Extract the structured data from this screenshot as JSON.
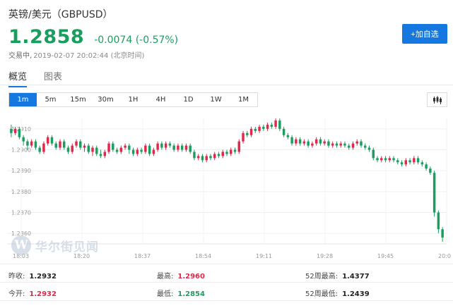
{
  "header": {
    "title": "英镑/美元（GBPUSD）",
    "price": "1.2858",
    "change": "-0.0074 (-0.57%)",
    "status": "交易中,",
    "timestamp": "2019-02-07 20:02:44 (北京时间)",
    "add_button": "+加自选"
  },
  "tabs": [
    {
      "label": "概览",
      "active": true
    },
    {
      "label": "图表",
      "active": false
    }
  ],
  "periods": [
    "1m",
    "5m",
    "15m",
    "30m",
    "1H",
    "4H",
    "1D",
    "1W",
    "1M"
  ],
  "active_period": "1m",
  "colors": {
    "up": "#e0284a",
    "down": "#1a9e5f",
    "accent": "#1478e0"
  },
  "chart_type_icon": "candlestick-icon",
  "watermark": {
    "logo_letter": "W",
    "text": "华尔街见闻"
  },
  "chart_data": {
    "type": "candlestick",
    "y_ticks": [
      "1.2910",
      "1.2900",
      "1.2890",
      "1.2880",
      "1.2870",
      "1.2860"
    ],
    "ylim": [
      1.2855,
      1.2915
    ],
    "x_ticks": [
      "18:03",
      "18:20",
      "18:37",
      "18:54",
      "19:11",
      "19:28",
      "19:45",
      "20:0"
    ],
    "x_start": "18:03",
    "x_end": "20:02",
    "grid": true,
    "candles": [
      [
        1.291,
        1.2908,
        1.2912,
        1.2906
      ],
      [
        1.2908,
        1.291,
        1.2911,
        1.2907
      ],
      [
        1.291,
        1.2906,
        1.2911,
        1.2905
      ],
      [
        1.2906,
        1.2904,
        1.2907,
        1.2902
      ],
      [
        1.2904,
        1.2902,
        1.2905,
        1.29
      ],
      [
        1.2902,
        1.2904,
        1.2905,
        1.2901
      ],
      [
        1.2904,
        1.2901,
        1.2905,
        1.29
      ],
      [
        1.2901,
        1.2899,
        1.2902,
        1.2898
      ],
      [
        1.2899,
        1.2903,
        1.2904,
        1.2898
      ],
      [
        1.2903,
        1.2906,
        1.2907,
        1.2902
      ],
      [
        1.2906,
        1.2903,
        1.2907,
        1.2902
      ],
      [
        1.2903,
        1.2901,
        1.2904,
        1.29
      ],
      [
        1.2901,
        1.2904,
        1.2905,
        1.29
      ],
      [
        1.2904,
        1.2901,
        1.2905,
        1.29
      ],
      [
        1.2901,
        1.2899,
        1.2902,
        1.2898
      ],
      [
        1.2899,
        1.2902,
        1.2903,
        1.2898
      ],
      [
        1.2902,
        1.2904,
        1.2905,
        1.2901
      ],
      [
        1.2904,
        1.2901,
        1.2905,
        1.29
      ],
      [
        1.2901,
        1.2902,
        1.2903,
        1.2899
      ],
      [
        1.2902,
        1.2899,
        1.2903,
        1.2898
      ],
      [
        1.2899,
        1.2901,
        1.2902,
        1.2897
      ],
      [
        1.2901,
        1.2898,
        1.2902,
        1.2897
      ],
      [
        1.2898,
        1.2897,
        1.29,
        1.2896
      ],
      [
        1.2897,
        1.2899,
        1.29,
        1.2896
      ],
      [
        1.2899,
        1.2903,
        1.2904,
        1.2898
      ],
      [
        1.2903,
        1.29,
        1.2904,
        1.2899
      ],
      [
        1.29,
        1.2899,
        1.2901,
        1.2898
      ],
      [
        1.2899,
        1.2901,
        1.2902,
        1.2898
      ],
      [
        1.2901,
        1.2902,
        1.2903,
        1.29
      ],
      [
        1.2902,
        1.29,
        1.2903,
        1.2898
      ],
      [
        1.29,
        1.2898,
        1.2901,
        1.2897
      ],
      [
        1.2898,
        1.29,
        1.2901,
        1.2897
      ],
      [
        1.29,
        1.2899,
        1.2901,
        1.2898
      ],
      [
        1.2899,
        1.2902,
        1.2903,
        1.2898
      ],
      [
        1.2902,
        1.2898,
        1.2903,
        1.2897
      ],
      [
        1.2898,
        1.29,
        1.2901,
        1.2897
      ],
      [
        1.29,
        1.2903,
        1.2904,
        1.2899
      ],
      [
        1.2903,
        1.2901,
        1.2904,
        1.29
      ],
      [
        1.2901,
        1.2903,
        1.2904,
        1.29
      ],
      [
        1.2903,
        1.2902,
        1.2904,
        1.2901
      ],
      [
        1.2902,
        1.29,
        1.2903,
        1.2899
      ],
      [
        1.29,
        1.2902,
        1.2903,
        1.2899
      ],
      [
        1.2902,
        1.29,
        1.2903,
        1.2899
      ],
      [
        1.29,
        1.2902,
        1.2903,
        1.2899
      ],
      [
        1.2902,
        1.2899,
        1.2903,
        1.2898
      ],
      [
        1.2899,
        1.2896,
        1.29,
        1.2895
      ],
      [
        1.2896,
        1.2897,
        1.2898,
        1.2895
      ],
      [
        1.2897,
        1.2895,
        1.2898,
        1.2894
      ],
      [
        1.2895,
        1.2897,
        1.2898,
        1.2894
      ],
      [
        1.2897,
        1.2896,
        1.2898,
        1.2895
      ],
      [
        1.2896,
        1.2898,
        1.2899,
        1.2895
      ],
      [
        1.2898,
        1.2897,
        1.2899,
        1.2896
      ],
      [
        1.2897,
        1.2899,
        1.29,
        1.2896
      ],
      [
        1.2899,
        1.2898,
        1.29,
        1.2897
      ],
      [
        1.2898,
        1.29,
        1.2901,
        1.2897
      ],
      [
        1.29,
        1.2899,
        1.2901,
        1.2898
      ],
      [
        1.2899,
        1.2904,
        1.2905,
        1.2898
      ],
      [
        1.2904,
        1.2908,
        1.2909,
        1.2903
      ],
      [
        1.2908,
        1.2907,
        1.2909,
        1.2906
      ],
      [
        1.2907,
        1.291,
        1.2911,
        1.2906
      ],
      [
        1.291,
        1.2909,
        1.2911,
        1.2908
      ],
      [
        1.2909,
        1.2911,
        1.2912,
        1.2908
      ],
      [
        1.2911,
        1.291,
        1.2912,
        1.2909
      ],
      [
        1.291,
        1.2912,
        1.2913,
        1.2909
      ],
      [
        1.2912,
        1.2911,
        1.2913,
        1.291
      ],
      [
        1.2911,
        1.2914,
        1.2915,
        1.291
      ],
      [
        1.2914,
        1.291,
        1.2915,
        1.2909
      ],
      [
        1.291,
        1.2907,
        1.2911,
        1.2906
      ],
      [
        1.2907,
        1.2906,
        1.2908,
        1.2905
      ],
      [
        1.2906,
        1.2903,
        1.2907,
        1.2902
      ],
      [
        1.2903,
        1.2905,
        1.2906,
        1.2902
      ],
      [
        1.2905,
        1.2903,
        1.2906,
        1.2902
      ],
      [
        1.2903,
        1.2904,
        1.2905,
        1.2902
      ],
      [
        1.2904,
        1.2902,
        1.2905,
        1.2901
      ],
      [
        1.2902,
        1.2903,
        1.2904,
        1.2901
      ],
      [
        1.2903,
        1.2905,
        1.2906,
        1.2902
      ],
      [
        1.2905,
        1.2903,
        1.2906,
        1.2902
      ],
      [
        1.2903,
        1.2904,
        1.2905,
        1.2902
      ],
      [
        1.2904,
        1.2902,
        1.2905,
        1.2901
      ],
      [
        1.2902,
        1.2903,
        1.2904,
        1.2901
      ],
      [
        1.2903,
        1.2902,
        1.2904,
        1.2901
      ],
      [
        1.2902,
        1.2903,
        1.2904,
        1.2901
      ],
      [
        1.2903,
        1.2902,
        1.2904,
        1.2901
      ],
      [
        1.2902,
        1.2901,
        1.2903,
        1.29
      ],
      [
        1.2901,
        1.2903,
        1.2904,
        1.29
      ],
      [
        1.2903,
        1.2904,
        1.2905,
        1.2902
      ],
      [
        1.2904,
        1.2902,
        1.2905,
        1.2901
      ],
      [
        1.2902,
        1.2901,
        1.2903,
        1.29
      ],
      [
        1.2901,
        1.29,
        1.2902,
        1.2899
      ],
      [
        1.29,
        1.2896,
        1.2901,
        1.2895
      ],
      [
        1.2896,
        1.2895,
        1.2897,
        1.2894
      ],
      [
        1.2895,
        1.2896,
        1.2897,
        1.2894
      ],
      [
        1.2896,
        1.2895,
        1.2897,
        1.2894
      ],
      [
        1.2895,
        1.2896,
        1.2897,
        1.2894
      ],
      [
        1.2896,
        1.2895,
        1.2897,
        1.2894
      ],
      [
        1.2895,
        1.2894,
        1.2896,
        1.2893
      ],
      [
        1.2894,
        1.2893,
        1.2895,
        1.2892
      ],
      [
        1.2893,
        1.2895,
        1.2896,
        1.2892
      ],
      [
        1.2895,
        1.2894,
        1.2896,
        1.2893
      ],
      [
        1.2894,
        1.2896,
        1.2897,
        1.2893
      ],
      [
        1.2896,
        1.2894,
        1.2897,
        1.2893
      ],
      [
        1.2894,
        1.2893,
        1.2895,
        1.2892
      ],
      [
        1.2893,
        1.2891,
        1.2894,
        1.289
      ],
      [
        1.2891,
        1.2889,
        1.2892,
        1.2888
      ],
      [
        1.2889,
        1.287,
        1.289,
        1.2868
      ],
      [
        1.287,
        1.2862,
        1.2871,
        1.286
      ],
      [
        1.2862,
        1.2858,
        1.2863,
        1.2856
      ]
    ]
  },
  "stats": [
    {
      "label": "昨收:",
      "value": "1.2932",
      "tone": "neutral"
    },
    {
      "label": "最高:",
      "value": "1.2960",
      "tone": "up"
    },
    {
      "label": "52周最高:",
      "value": "1.4377",
      "tone": "neutral"
    },
    {
      "label": "今开:",
      "value": "1.2932",
      "tone": "up"
    },
    {
      "label": "最低:",
      "value": "1.2854",
      "tone": "down"
    },
    {
      "label": "52周最低:",
      "value": "1.2439",
      "tone": "neutral"
    }
  ]
}
